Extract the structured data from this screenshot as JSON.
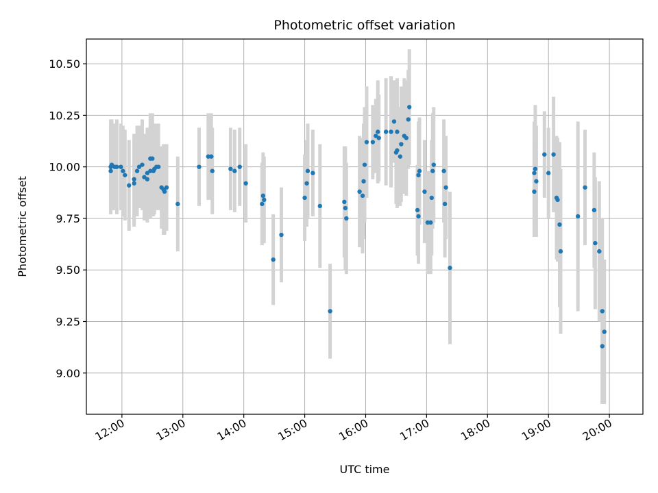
{
  "chart_data": {
    "type": "scatter",
    "title": "Photometric offset variation",
    "xlabel": "UTC time",
    "ylabel": "Photometric offset",
    "grid": true,
    "colors": {
      "point": "#1f77b4",
      "errorbar": "#d3d3d3",
      "grid": "#b0b0b0"
    },
    "xlim": [
      "11:25",
      "20:33"
    ],
    "ylim": [
      8.8,
      10.62
    ],
    "xticks": [
      "12:00",
      "13:00",
      "14:00",
      "15:00",
      "16:00",
      "17:00",
      "18:00",
      "19:00",
      "20:00"
    ],
    "yticks": [
      "9.00",
      "9.25",
      "9.50",
      "9.75",
      "10.00",
      "10.25",
      "10.50"
    ],
    "series": [
      {
        "points": [
          {
            "x": "11:49",
            "y": 9.98,
            "err": 0.21
          },
          {
            "x": "11:49",
            "y": 10.0,
            "err": 0.23
          },
          {
            "x": "11:50",
            "y": 10.01,
            "err": 0.22
          },
          {
            "x": "11:53",
            "y": 10.0,
            "err": 0.21
          },
          {
            "x": "11:55",
            "y": 10.0,
            "err": 0.23
          },
          {
            "x": "11:59",
            "y": 10.0,
            "err": 0.21
          },
          {
            "x": "12:01",
            "y": 9.98,
            "err": 0.22
          },
          {
            "x": "12:03",
            "y": 9.96,
            "err": 0.22
          },
          {
            "x": "12:07",
            "y": 9.91,
            "err": 0.22
          },
          {
            "x": "12:12",
            "y": 9.92,
            "err": 0.21
          },
          {
            "x": "12:12",
            "y": 9.94,
            "err": 0.22
          },
          {
            "x": "12:15",
            "y": 9.98,
            "err": 0.22
          },
          {
            "x": "12:17",
            "y": 10.0,
            "err": 0.2
          },
          {
            "x": "12:20",
            "y": 10.01,
            "err": 0.22
          },
          {
            "x": "12:22",
            "y": 9.95,
            "err": 0.21
          },
          {
            "x": "12:25",
            "y": 9.94,
            "err": 0.21
          },
          {
            "x": "12:25",
            "y": 9.97,
            "err": 0.22
          },
          {
            "x": "12:28",
            "y": 9.98,
            "err": 0.23
          },
          {
            "x": "12:28",
            "y": 10.04,
            "err": 0.22
          },
          {
            "x": "12:30",
            "y": 10.04,
            "err": 0.22
          },
          {
            "x": "12:31",
            "y": 9.98,
            "err": 0.22
          },
          {
            "x": "12:32",
            "y": 9.99,
            "err": 0.22
          },
          {
            "x": "12:34",
            "y": 10.0,
            "err": 0.21
          },
          {
            "x": "12:36",
            "y": 10.0,
            "err": 0.21
          },
          {
            "x": "12:39",
            "y": 9.9,
            "err": 0.2
          },
          {
            "x": "12:41",
            "y": 9.89,
            "err": 0.22
          },
          {
            "x": "12:42",
            "y": 9.88,
            "err": 0.21
          },
          {
            "x": "12:44",
            "y": 9.9,
            "err": 0.21
          },
          {
            "x": "12:55",
            "y": 9.82,
            "err": 0.23
          },
          {
            "x": "13:16",
            "y": 10.0,
            "err": 0.19
          },
          {
            "x": "13:25",
            "y": 10.05,
            "err": 0.21
          },
          {
            "x": "13:28",
            "y": 10.05,
            "err": 0.21
          },
          {
            "x": "13:29",
            "y": 9.98,
            "err": 0.21
          },
          {
            "x": "13:47",
            "y": 9.99,
            "err": 0.2
          },
          {
            "x": "13:51",
            "y": 9.98,
            "err": 0.2
          },
          {
            "x": "13:56",
            "y": 10.0,
            "err": 0.19
          },
          {
            "x": "14:02",
            "y": 9.92,
            "err": 0.19
          },
          {
            "x": "14:18",
            "y": 9.82,
            "err": 0.2
          },
          {
            "x": "14:19",
            "y": 9.86,
            "err": 0.21
          },
          {
            "x": "14:20",
            "y": 9.84,
            "err": 0.21
          },
          {
            "x": "14:29",
            "y": 9.55,
            "err": 0.22
          },
          {
            "x": "14:37",
            "y": 9.67,
            "err": 0.23
          },
          {
            "x": "15:00",
            "y": 9.85,
            "err": 0.21
          },
          {
            "x": "15:02",
            "y": 9.92,
            "err": 0.21
          },
          {
            "x": "15:03",
            "y": 9.98,
            "err": 0.23
          },
          {
            "x": "15:08",
            "y": 9.97,
            "err": 0.21
          },
          {
            "x": "15:15",
            "y": 9.81,
            "err": 0.3
          },
          {
            "x": "15:25",
            "y": 9.3,
            "err": 0.23
          },
          {
            "x": "15:39",
            "y": 9.83,
            "err": 0.27
          },
          {
            "x": "15:40",
            "y": 9.8,
            "err": 0.3
          },
          {
            "x": "15:41",
            "y": 9.75,
            "err": 0.27
          },
          {
            "x": "15:54",
            "y": 9.88,
            "err": 0.27
          },
          {
            "x": "15:57",
            "y": 9.86,
            "err": 0.28
          },
          {
            "x": "15:58",
            "y": 9.93,
            "err": 0.28
          },
          {
            "x": "15:59",
            "y": 10.01,
            "err": 0.28
          },
          {
            "x": "16:01",
            "y": 10.12,
            "err": 0.27
          },
          {
            "x": "16:07",
            "y": 10.12,
            "err": 0.18
          },
          {
            "x": "16:10",
            "y": 10.15,
            "err": 0.18
          },
          {
            "x": "16:12",
            "y": 10.17,
            "err": 0.25
          },
          {
            "x": "16:13",
            "y": 10.14,
            "err": 0.21
          },
          {
            "x": "16:20",
            "y": 10.17,
            "err": 0.26
          },
          {
            "x": "16:25",
            "y": 10.17,
            "err": 0.27
          },
          {
            "x": "16:28",
            "y": 10.22,
            "err": 0.2
          },
          {
            "x": "16:30",
            "y": 10.07,
            "err": 0.25
          },
          {
            "x": "16:31",
            "y": 10.08,
            "err": 0.28
          },
          {
            "x": "16:31",
            "y": 10.17,
            "err": 0.26
          },
          {
            "x": "16:34",
            "y": 10.05,
            "err": 0.24
          },
          {
            "x": "16:35",
            "y": 10.11,
            "err": 0.28
          },
          {
            "x": "16:38",
            "y": 10.15,
            "err": 0.28
          },
          {
            "x": "16:40",
            "y": 10.14,
            "err": 0.28
          },
          {
            "x": "16:42",
            "y": 10.23,
            "err": 0.24
          },
          {
            "x": "16:43",
            "y": 10.29,
            "err": 0.28
          },
          {
            "x": "16:51",
            "y": 9.79,
            "err": 0.22
          },
          {
            "x": "16:52",
            "y": 9.76,
            "err": 0.23
          },
          {
            "x": "16:52",
            "y": 9.96,
            "err": 0.26
          },
          {
            "x": "16:53",
            "y": 9.98,
            "err": 0.26
          },
          {
            "x": "16:58",
            "y": 9.88,
            "err": 0.25
          },
          {
            "x": "17:01",
            "y": 9.73,
            "err": 0.25
          },
          {
            "x": "17:04",
            "y": 9.73,
            "err": 0.25
          },
          {
            "x": "17:05",
            "y": 9.85,
            "err": 0.28
          },
          {
            "x": "17:06",
            "y": 9.98,
            "err": 0.28
          },
          {
            "x": "17:07",
            "y": 10.01,
            "err": 0.28
          },
          {
            "x": "17:17",
            "y": 9.98,
            "err": 0.25
          },
          {
            "x": "17:18",
            "y": 9.82,
            "err": 0.26
          },
          {
            "x": "17:19",
            "y": 9.9,
            "err": 0.25
          },
          {
            "x": "17:23",
            "y": 9.51,
            "err": 0.37
          },
          {
            "x": "18:46",
            "y": 9.88,
            "err": 0.22
          },
          {
            "x": "18:46",
            "y": 9.97,
            "err": 0.25
          },
          {
            "x": "18:47",
            "y": 9.99,
            "err": 0.31
          },
          {
            "x": "18:48",
            "y": 9.93,
            "err": 0.27
          },
          {
            "x": "18:56",
            "y": 10.06,
            "err": 0.21
          },
          {
            "x": "19:00",
            "y": 9.97,
            "err": 0.22
          },
          {
            "x": "19:05",
            "y": 10.06,
            "err": 0.28
          },
          {
            "x": "19:08",
            "y": 9.85,
            "err": 0.3
          },
          {
            "x": "19:09",
            "y": 9.84,
            "err": 0.3
          },
          {
            "x": "19:11",
            "y": 9.72,
            "err": 0.4
          },
          {
            "x": "19:12",
            "y": 9.59,
            "err": 0.4
          },
          {
            "x": "19:29",
            "y": 9.76,
            "err": 0.46
          },
          {
            "x": "19:36",
            "y": 9.9,
            "err": 0.28
          },
          {
            "x": "19:45",
            "y": 9.79,
            "err": 0.28
          },
          {
            "x": "19:46",
            "y": 9.63,
            "err": 0.32
          },
          {
            "x": "19:50",
            "y": 9.59,
            "err": 0.34
          },
          {
            "x": "19:53",
            "y": 9.3,
            "err": 0.45
          },
          {
            "x": "19:53",
            "y": 9.13,
            "err": 0.28
          },
          {
            "x": "19:55",
            "y": 9.2,
            "err": 0.35
          }
        ]
      }
    ]
  }
}
